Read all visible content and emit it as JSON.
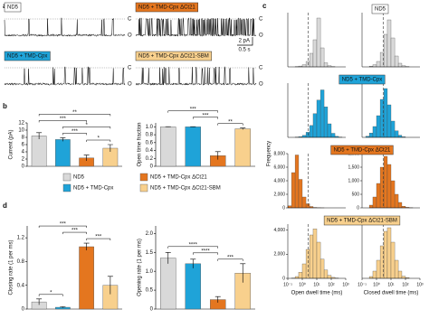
{
  "panel_labels": {
    "a": "a",
    "b": "b",
    "c": "c",
    "d": "d"
  },
  "legend": {
    "names": [
      "ND5",
      "ND5 + TMD-Cpx",
      "ND5 + TMD-Cpx ΔCt21",
      "ND5 + TMD-Cpx ΔCt21-SBM"
    ],
    "colors": [
      "#d9d9d9",
      "#1fa3d8",
      "#e4761f",
      "#f8d08d"
    ]
  },
  "traces": {
    "closed": "C",
    "open": "O",
    "scale_current": "2 pA",
    "scale_time": "0.5 s"
  },
  "chart_data": [
    {
      "type": "bar",
      "ylabel": "Current (pA)",
      "values": [
        8.4,
        7.4,
        2.3,
        5.0
      ],
      "errors": [
        0.9,
        0.5,
        0.8,
        1.0
      ],
      "ylim": [
        0,
        12
      ],
      "yticks": [
        0,
        2,
        4,
        6,
        8,
        10,
        12
      ],
      "significance": [
        {
          "label": "**",
          "between": [
            "ND5",
            "ND5 + TMD-Cpx ΔCt21-SBM"
          ]
        },
        {
          "label": "***",
          "between": [
            "ND5",
            "ND5 + TMD-Cpx ΔCt21"
          ]
        },
        {
          "label": "*",
          "between": [
            "ND5 + TMD-Cpx",
            "ND5 + TMD-Cpx ΔCt21-SBM"
          ]
        },
        {
          "label": "***",
          "between": [
            "ND5 + TMD-Cpx",
            "ND5 + TMD-Cpx ΔCt21"
          ]
        },
        {
          "label": "*",
          "between": [
            "ND5 + TMD-Cpx ΔCt21",
            "ND5 + TMD-Cpx ΔCt21-SBM"
          ]
        }
      ]
    },
    {
      "type": "bar",
      "ylabel": "Open time fraction",
      "values": [
        1.0,
        1.0,
        0.27,
        0.95
      ],
      "errors": [
        0.005,
        0.005,
        0.1,
        0.02
      ],
      "ylim": [
        0,
        1.1
      ],
      "yticks": [
        0,
        0.2,
        0.4,
        0.6,
        0.8,
        {
          "value": 1,
          "label": "1.0"
        }
      ],
      "significance": [
        {
          "label": "***",
          "between": [
            "ND5",
            "ND5 + TMD-Cpx ΔCt21"
          ]
        },
        {
          "label": "***",
          "between": [
            "ND5 + TMD-Cpx",
            "ND5 + TMD-Cpx ΔCt21"
          ]
        },
        {
          "label": "**",
          "between": [
            "ND5 + TMD-Cpx ΔCt21",
            "ND5 + TMD-Cpx ΔCt21-SBM"
          ]
        }
      ]
    },
    {
      "type": "bar",
      "ylabel": "Closing rate (1 per ms)",
      "values": [
        0.12,
        0.03,
        1.05,
        0.4
      ],
      "errors": [
        0.05,
        0.01,
        0.06,
        0.15
      ],
      "ylim": [
        0,
        1.4
      ],
      "yticks": [
        0,
        0.4,
        0.8,
        1.2
      ],
      "significance": [
        {
          "label": "***",
          "between": [
            "ND5",
            "ND5 + TMD-Cpx ΔCt21"
          ]
        },
        {
          "label": "***",
          "between": [
            "ND5 + TMD-Cpx",
            "ND5 + TMD-Cpx ΔCt21"
          ]
        },
        {
          "label": "*",
          "between": [
            "ND5",
            "ND5 + TMD-Cpx"
          ]
        },
        {
          "label": "***",
          "between": [
            "ND5 + TMD-Cpx ΔCt21",
            "ND5 + TMD-Cpx ΔCt21-SBM"
          ]
        }
      ]
    },
    {
      "type": "bar",
      "ylabel": "Opening rate (1 per ms)",
      "values": [
        1.35,
        1.2,
        0.25,
        0.95
      ],
      "errors": [
        0.15,
        0.12,
        0.08,
        0.25
      ],
      "ylim": [
        0,
        2.2
      ],
      "yticks": [
        0,
        0.5,
        {
          "value": 1,
          "label": "1.0"
        },
        1.5,
        {
          "value": 2,
          "label": "2.0"
        }
      ],
      "significance": [
        {
          "label": "****",
          "between": [
            "ND5",
            "ND5 + TMD-Cpx ΔCt21"
          ]
        },
        {
          "label": "****",
          "between": [
            "ND5 + TMD-Cpx",
            "ND5 + TMD-Cpx ΔCt21"
          ]
        },
        {
          "label": "***",
          "between": [
            "ND5 + TMD-Cpx ΔCt21",
            "ND5 + TMD-Cpx ΔCt21-SBM"
          ]
        }
      ]
    },
    {
      "type": "histogram",
      "ylabel": "Frequency",
      "xscale": "log",
      "xlim": [
        0.1,
        1000
      ],
      "ylim": [
        0,
        2000
      ],
      "reference_line": 2.5,
      "bins": [
        0.1,
        0.18,
        0.32,
        0.56,
        1,
        1.8,
        3.2,
        5.6,
        10,
        18,
        32,
        56,
        100,
        180,
        320,
        560,
        1000
      ],
      "counts": [
        0,
        0,
        10,
        30,
        80,
        200,
        500,
        1000,
        1800,
        700,
        150,
        40,
        10,
        0,
        0,
        0
      ]
    },
    {
      "type": "histogram",
      "xscale": "log",
      "xlim": [
        0.1,
        1000
      ],
      "ylim": [
        0,
        1500
      ],
      "reference_line": 3,
      "bins": [
        0.1,
        0.18,
        0.32,
        0.56,
        1,
        1.8,
        3.2,
        5.6,
        10,
        18,
        32,
        56,
        100,
        180,
        320,
        560,
        1000
      ],
      "counts": [
        0,
        0,
        20,
        60,
        150,
        400,
        900,
        1300,
        800,
        300,
        100,
        30,
        10,
        0,
        0,
        0
      ]
    },
    {
      "type": "histogram",
      "xscale": "log",
      "xlim": [
        0.1,
        1000
      ],
      "ylim": [
        0,
        1600
      ],
      "reference_line": 2.5,
      "bins": [
        0.1,
        0.18,
        0.32,
        0.56,
        1,
        1.8,
        3.2,
        5.6,
        10,
        18,
        32,
        56,
        100,
        180,
        320,
        560,
        1000
      ],
      "counts": [
        0,
        0,
        5,
        20,
        60,
        150,
        350,
        700,
        1100,
        1400,
        900,
        400,
        120,
        30,
        5,
        0
      ]
    },
    {
      "type": "histogram",
      "xscale": "log",
      "xlim": [
        0.1,
        1000
      ],
      "ylim": [
        0,
        1000
      ],
      "reference_line": 3,
      "bins": [
        0.1,
        0.18,
        0.32,
        0.56,
        1,
        1.8,
        3.2,
        5.6,
        10,
        18,
        32,
        56,
        100,
        180,
        320,
        560,
        1000
      ],
      "counts": [
        0,
        20,
        80,
        200,
        400,
        700,
        900,
        600,
        300,
        120,
        40,
        10,
        0,
        0,
        0,
        0
      ]
    },
    {
      "type": "histogram",
      "xscale": "log",
      "xlim": [
        0.1,
        1000
      ],
      "ylim": [
        0,
        8000
      ],
      "reference_line": 2.5,
      "yticks": [
        0,
        {
          "value": 2000,
          "label": "2,000"
        },
        {
          "value": 4000,
          "label": "4,000"
        },
        {
          "value": 6000,
          "label": "6,000"
        },
        {
          "value": 8000,
          "label": "8,000"
        }
      ],
      "bins": [
        0.1,
        0.18,
        0.32,
        0.56,
        1,
        1.8,
        3.2,
        5.6,
        10,
        18,
        32,
        56,
        100,
        180,
        320,
        560,
        1000
      ],
      "counts": [
        300,
        5200,
        7800,
        4200,
        1600,
        600,
        200,
        60,
        20,
        5,
        0,
        0,
        0,
        0,
        0,
        0
      ]
    },
    {
      "type": "histogram",
      "xscale": "log",
      "xlim": [
        0.1,
        1000
      ],
      "ylim": [
        0,
        2000
      ],
      "reference_line": 3,
      "yticks": [
        0,
        500,
        {
          "value": 1000,
          "label": "1,000"
        },
        {
          "value": 1500,
          "label": "1,500"
        },
        {
          "value": 2000,
          "label": "2,000"
        }
      ],
      "bins": [
        0.1,
        0.18,
        0.32,
        0.56,
        1,
        1.8,
        3.2,
        5.6,
        10,
        18,
        32,
        56,
        100,
        180,
        320,
        560,
        1000
      ],
      "counts": [
        0,
        0,
        100,
        400,
        900,
        1500,
        1900,
        1600,
        1000,
        500,
        200,
        60,
        20,
        5,
        0,
        0
      ]
    },
    {
      "type": "histogram",
      "xscale": "log",
      "xlim": [
        0.1,
        1000
      ],
      "ylim": [
        0,
        4500
      ],
      "reference_line": 2.5,
      "yticks": [
        0,
        {
          "value": 2000,
          "label": "2,000"
        },
        {
          "value": 4000,
          "label": "4,000"
        }
      ],
      "xlabel": "Open dwell time (ms)",
      "xticks": [
        {
          "value": 0.1,
          "label": "10⁻¹"
        },
        {
          "value": 1,
          "label": "10⁰"
        },
        {
          "value": 10,
          "label": "10¹"
        },
        {
          "value": 100,
          "label": "10²"
        },
        {
          "value": 1000,
          "label": "10³"
        }
      ],
      "bins": [
        0.1,
        0.18,
        0.32,
        0.56,
        1,
        1.8,
        3.2,
        5.6,
        10,
        18,
        32,
        56,
        100,
        180,
        320,
        560,
        1000
      ],
      "counts": [
        0,
        20,
        150,
        500,
        1200,
        2400,
        3600,
        4100,
        3000,
        1600,
        700,
        250,
        80,
        20,
        0,
        0
      ]
    },
    {
      "type": "histogram",
      "xscale": "log",
      "xlim": [
        0.1,
        1000
      ],
      "ylim": [
        0,
        1500
      ],
      "reference_line": 3,
      "xlabel": "Closed dwell time (ms)",
      "xticks": [
        {
          "value": 0.1,
          "label": "10⁻¹"
        },
        {
          "value": 1,
          "label": "10⁰"
        },
        {
          "value": 10,
          "label": "10¹"
        },
        {
          "value": 100,
          "label": "10²"
        },
        {
          "value": 1000,
          "label": "10³"
        }
      ],
      "bins": [
        0.1,
        0.18,
        0.32,
        0.56,
        1,
        1.8,
        3.2,
        5.6,
        10,
        18,
        32,
        56,
        100,
        180,
        320,
        560,
        1000
      ],
      "counts": [
        0,
        0,
        50,
        200,
        500,
        900,
        1300,
        1400,
        1000,
        500,
        200,
        60,
        20,
        0,
        0,
        0
      ]
    }
  ]
}
